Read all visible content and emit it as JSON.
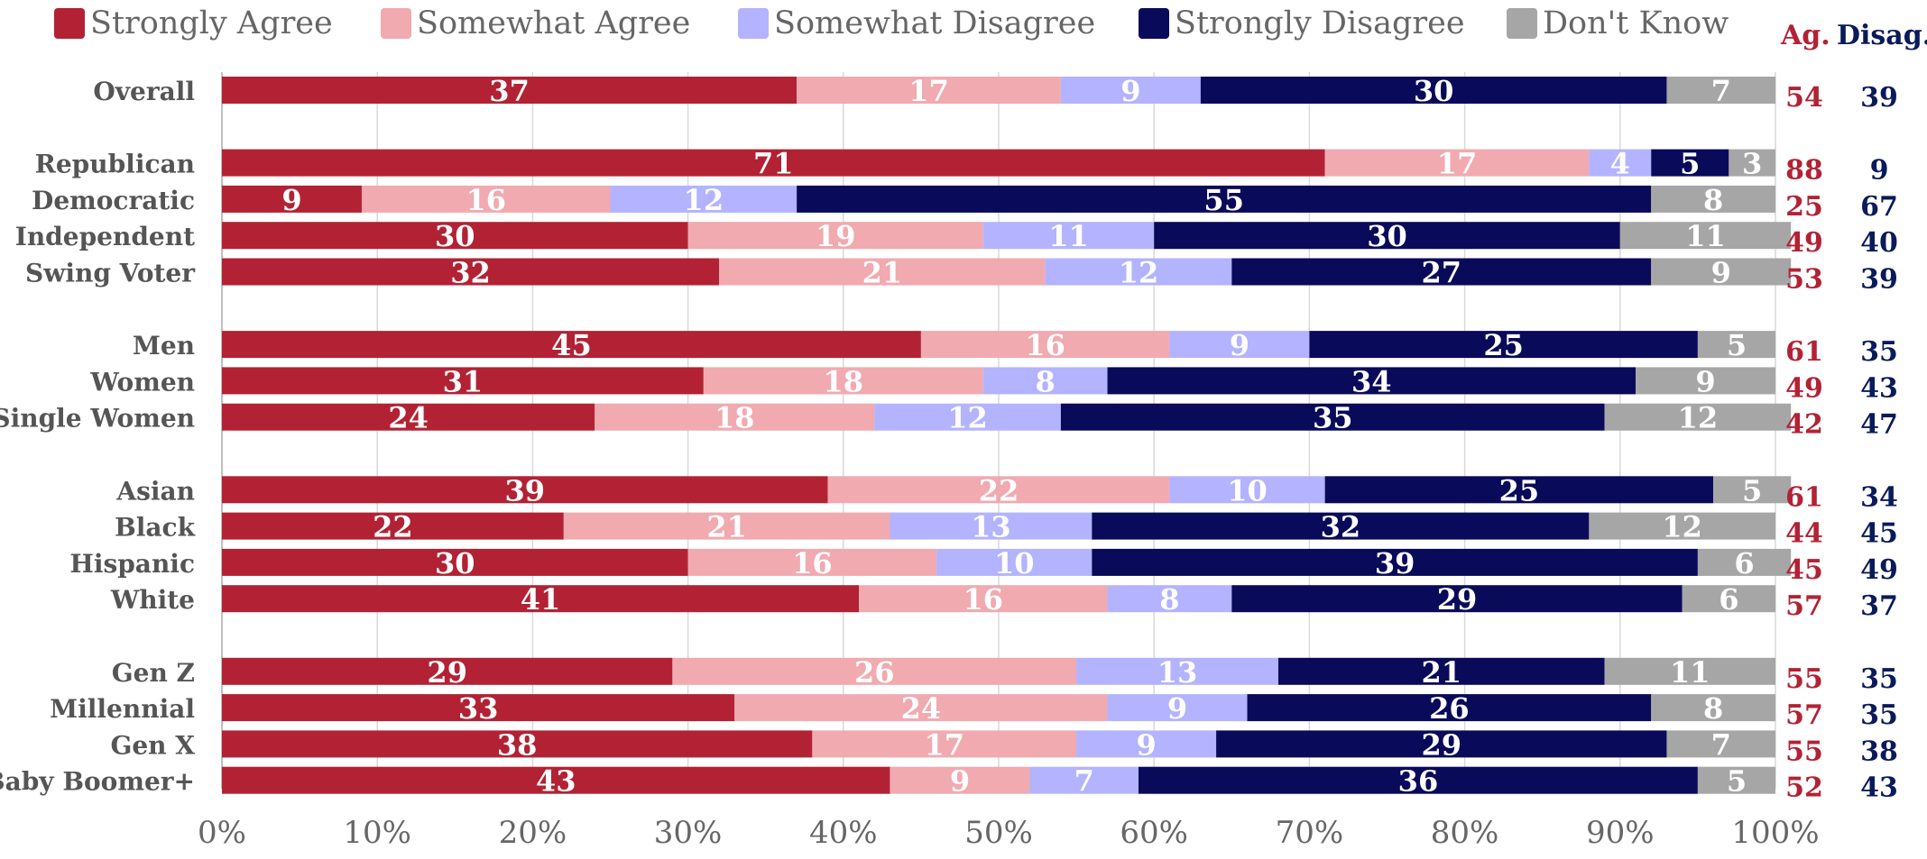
{
  "colors": {
    "strongly_agree": "#b22234",
    "somewhat_agree": "#f0aab0",
    "somewhat_disagree": "#b3b3ff",
    "strongly_disagree": "#0a0a5a",
    "dont_know": "#a6a6a6",
    "agree_total": "#b22234",
    "disagree_total": "#0a1a5a",
    "row_label": "#555555"
  },
  "legend": [
    {
      "label": "Strongly Agree",
      "color": "#b22234"
    },
    {
      "label": "Somewhat Agree",
      "color": "#f0aab0"
    },
    {
      "label": "Somewhat Disagree",
      "color": "#b3b3ff"
    },
    {
      "label": "Strongly Disagree",
      "color": "#0a0a5a"
    },
    {
      "label": "Don't Know",
      "color": "#a6a6a6"
    }
  ],
  "columns": {
    "agree_header": "Ag.",
    "disagree_header": "Disag."
  },
  "chart_data": {
    "type": "bar",
    "orientation": "horizontal",
    "stacked": true,
    "xlim": [
      0,
      100
    ],
    "x_ticks": [
      "0%",
      "10%",
      "20%",
      "30%",
      "40%",
      "50%",
      "60%",
      "70%",
      "80%",
      "90%",
      "100%"
    ],
    "grid": true,
    "legend_position": "top",
    "series_names": [
      "Strongly Agree",
      "Somewhat Agree",
      "Somewhat Disagree",
      "Strongly Disagree",
      "Don't Know"
    ],
    "groups": [
      {
        "rows": [
          {
            "label": "Overall",
            "values": [
              37,
              17,
              9,
              30,
              7
            ],
            "agree": 54,
            "disagree": 39
          }
        ]
      },
      {
        "rows": [
          {
            "label": "Republican",
            "values": [
              71,
              17,
              4,
              5,
              3
            ],
            "agree": 88,
            "disagree": 9
          },
          {
            "label": "Democratic",
            "values": [
              9,
              16,
              12,
              55,
              8
            ],
            "agree": 25,
            "disagree": 67
          },
          {
            "label": "Independent",
            "values": [
              30,
              19,
              11,
              30,
              11
            ],
            "agree": 49,
            "disagree": 40
          },
          {
            "label": "Swing Voter",
            "values": [
              32,
              21,
              12,
              27,
              9
            ],
            "agree": 53,
            "disagree": 39
          }
        ]
      },
      {
        "rows": [
          {
            "label": "Men",
            "values": [
              45,
              16,
              9,
              25,
              5
            ],
            "agree": 61,
            "disagree": 35
          },
          {
            "label": "Women",
            "values": [
              31,
              18,
              8,
              34,
              9
            ],
            "agree": 49,
            "disagree": 43
          },
          {
            "label": "Single Women",
            "values": [
              24,
              18,
              12,
              35,
              12
            ],
            "agree": 42,
            "disagree": 47
          }
        ]
      },
      {
        "rows": [
          {
            "label": "Asian",
            "values": [
              39,
              22,
              10,
              25,
              5
            ],
            "agree": 61,
            "disagree": 34
          },
          {
            "label": "Black",
            "values": [
              22,
              21,
              13,
              32,
              12
            ],
            "agree": 44,
            "disagree": 45
          },
          {
            "label": "Hispanic",
            "values": [
              30,
              16,
              10,
              39,
              6
            ],
            "agree": 45,
            "disagree": 49
          },
          {
            "label": "White",
            "values": [
              41,
              16,
              8,
              29,
              6
            ],
            "agree": 57,
            "disagree": 37
          }
        ]
      },
      {
        "rows": [
          {
            "label": "Gen Z",
            "values": [
              29,
              26,
              13,
              21,
              11
            ],
            "agree": 55,
            "disagree": 35
          },
          {
            "label": "Millennial",
            "values": [
              33,
              24,
              9,
              26,
              8
            ],
            "agree": 57,
            "disagree": 35
          },
          {
            "label": "Gen X",
            "values": [
              38,
              17,
              9,
              29,
              7
            ],
            "agree": 55,
            "disagree": 38
          },
          {
            "label": "Baby Boomer+",
            "values": [
              43,
              9,
              7,
              36,
              5
            ],
            "agree": 52,
            "disagree": 43
          }
        ]
      }
    ]
  }
}
